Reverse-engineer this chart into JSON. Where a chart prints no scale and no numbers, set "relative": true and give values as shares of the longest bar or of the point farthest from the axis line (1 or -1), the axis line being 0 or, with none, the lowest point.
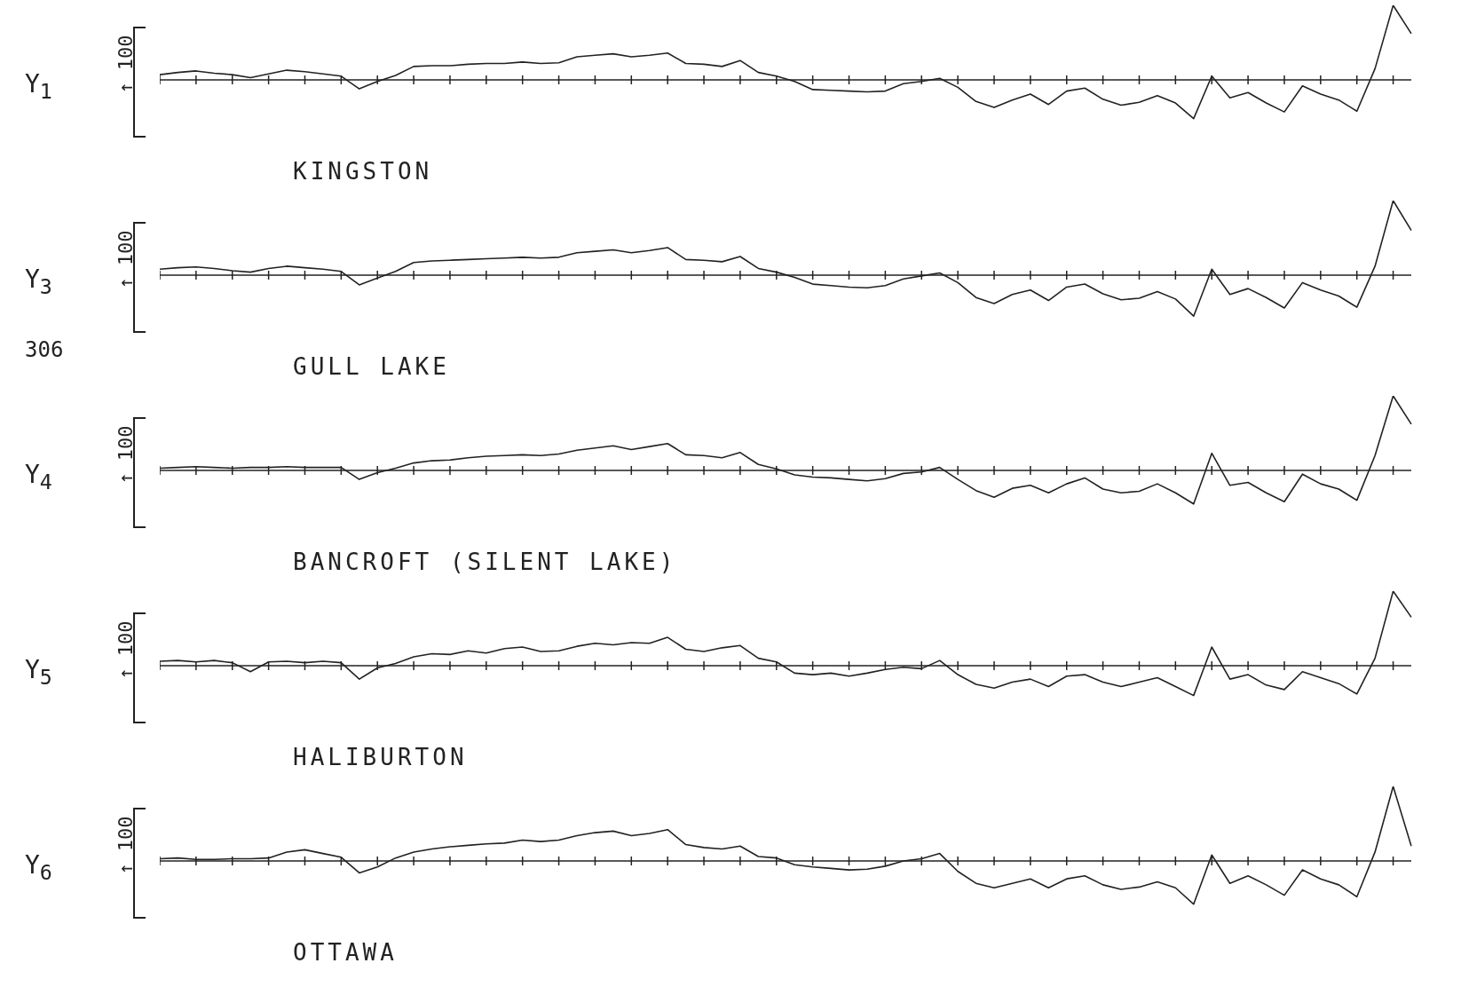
{
  "chart_data": [
    {
      "type": "line",
      "title": "KINGSTON",
      "ylabel": "Y$_{1}$",
      "relative": true,
      "color": "#222222",
      "annotations": [
        "↑ 100"
      ],
      "categories": [
        null,
        null,
        null,
        null,
        null,
        null,
        null,
        null,
        null,
        null,
        null,
        null,
        null,
        null,
        null,
        null,
        null,
        null,
        null,
        null,
        null,
        null,
        null,
        null,
        null,
        null,
        null,
        null,
        null,
        null,
        null,
        null,
        null,
        null,
        null,
        null,
        null,
        null,
        null,
        null,
        null,
        null,
        null,
        null,
        null,
        null,
        null,
        null,
        null,
        null,
        null,
        null,
        null,
        null,
        null,
        null,
        null,
        null,
        null,
        null,
        null,
        null,
        null,
        null,
        null,
        null,
        null,
        null,
        null,
        null
      ],
      "values": [
        0.07,
        0.1,
        0.12,
        0.09,
        0.07,
        0.03,
        0.08,
        0.13,
        0.11,
        0.08,
        0.05,
        -0.12,
        -0.02,
        0.06,
        0.18,
        0.19,
        0.19,
        0.21,
        0.22,
        0.22,
        0.24,
        0.22,
        0.23,
        0.31,
        0.33,
        0.35,
        0.31,
        0.33,
        0.36,
        0.22,
        0.21,
        0.18,
        0.26,
        0.1,
        0.05,
        -0.02,
        -0.13,
        -0.14,
        -0.15,
        -0.16,
        -0.15,
        -0.05,
        -0.02,
        0.02,
        -0.1,
        -0.29,
        -0.37,
        -0.27,
        -0.19,
        -0.33,
        -0.15,
        -0.11,
        -0.26,
        -0.34,
        -0.3,
        -0.21,
        -0.31,
        -0.52,
        0.05,
        -0.24,
        -0.17,
        -0.31,
        -0.43,
        -0.08,
        -0.19,
        -0.27,
        -0.42,
        0.15,
        1,
        0.62
      ]
    },
    {
      "type": "line",
      "title": "GULL LAKE",
      "ylabel": "Y$_{3}$",
      "relative": true,
      "color": "#222222",
      "annotations": [
        "↑ 100",
        "306"
      ],
      "categories": [
        null,
        null,
        null,
        null,
        null,
        null,
        null,
        null,
        null,
        null,
        null,
        null,
        null,
        null,
        null,
        null,
        null,
        null,
        null,
        null,
        null,
        null,
        null,
        null,
        null,
        null,
        null,
        null,
        null,
        null,
        null,
        null,
        null,
        null,
        null,
        null,
        null,
        null,
        null,
        null,
        null,
        null,
        null,
        null,
        null,
        null,
        null,
        null,
        null,
        null,
        null,
        null,
        null,
        null,
        null,
        null,
        null,
        null,
        null,
        null,
        null,
        null,
        null,
        null,
        null,
        null,
        null,
        null,
        null,
        null
      ],
      "values": [
        0.08,
        0.1,
        0.11,
        0.09,
        0.06,
        0.04,
        0.09,
        0.12,
        0.1,
        0.08,
        0.05,
        -0.13,
        -0.04,
        0.05,
        0.17,
        0.19,
        0.2,
        0.21,
        0.22,
        0.23,
        0.24,
        0.23,
        0.24,
        0.3,
        0.32,
        0.34,
        0.3,
        0.33,
        0.37,
        0.21,
        0.2,
        0.18,
        0.25,
        0.09,
        0.04,
        -0.03,
        -0.12,
        -0.14,
        -0.16,
        -0.17,
        -0.14,
        -0.05,
        -0.01,
        0.03,
        -0.1,
        -0.3,
        -0.38,
        -0.26,
        -0.2,
        -0.34,
        -0.16,
        -0.12,
        -0.25,
        -0.33,
        -0.31,
        -0.22,
        -0.32,
        -0.55,
        0.08,
        -0.26,
        -0.18,
        -0.3,
        -0.44,
        -0.1,
        -0.2,
        -0.28,
        -0.43,
        0.12,
        1,
        0.6
      ]
    },
    {
      "type": "line",
      "title": "BANCROFT (SILENT LAKE)",
      "ylabel": "Y$_{4}$",
      "relative": true,
      "color": "#222222",
      "annotations": [
        "↑ 100"
      ],
      "categories": [
        null,
        null,
        null,
        null,
        null,
        null,
        null,
        null,
        null,
        null,
        null,
        null,
        null,
        null,
        null,
        null,
        null,
        null,
        null,
        null,
        null,
        null,
        null,
        null,
        null,
        null,
        null,
        null,
        null,
        null,
        null,
        null,
        null,
        null,
        null,
        null,
        null,
        null,
        null,
        null,
        null,
        null,
        null,
        null,
        null,
        null,
        null,
        null,
        null,
        null,
        null,
        null,
        null,
        null,
        null,
        null,
        null,
        null,
        null,
        null,
        null,
        null,
        null,
        null,
        null,
        null,
        null,
        null,
        null,
        null
      ],
      "values": [
        0.03,
        0.04,
        0.05,
        0.04,
        0.03,
        0.04,
        0.04,
        0.05,
        0.04,
        0.04,
        0.04,
        -0.12,
        -0.03,
        0.03,
        0.1,
        0.13,
        0.14,
        0.17,
        0.19,
        0.2,
        0.21,
        0.2,
        0.22,
        0.27,
        0.3,
        0.33,
        0.28,
        0.32,
        0.36,
        0.21,
        0.2,
        0.17,
        0.24,
        0.08,
        0.02,
        -0.06,
        -0.09,
        -0.1,
        -0.12,
        -0.14,
        -0.11,
        -0.04,
        -0.02,
        0.04,
        -0.12,
        -0.27,
        -0.36,
        -0.24,
        -0.2,
        -0.3,
        -0.18,
        -0.1,
        -0.25,
        -0.3,
        -0.28,
        -0.18,
        -0.3,
        -0.45,
        0.23,
        -0.2,
        -0.16,
        -0.3,
        -0.42,
        -0.05,
        -0.18,
        -0.25,
        -0.4,
        0.2,
        1,
        0.62
      ]
    },
    {
      "type": "line",
      "title": "HALIBURTON",
      "ylabel": "Y$_{5}$",
      "relative": true,
      "color": "#222222",
      "annotations": [
        "↑ 100"
      ],
      "categories": [
        null,
        null,
        null,
        null,
        null,
        null,
        null,
        null,
        null,
        null,
        null,
        null,
        null,
        null,
        null,
        null,
        null,
        null,
        null,
        null,
        null,
        null,
        null,
        null,
        null,
        null,
        null,
        null,
        null,
        null,
        null,
        null,
        null,
        null,
        null,
        null,
        null,
        null,
        null,
        null,
        null,
        null,
        null,
        null,
        null,
        null,
        null,
        null,
        null,
        null,
        null,
        null,
        null,
        null,
        null,
        null,
        null,
        null,
        null,
        null,
        null,
        null,
        null,
        null,
        null,
        null,
        null,
        null,
        null,
        null
      ],
      "values": [
        0.06,
        0.07,
        0.05,
        0.07,
        0.04,
        -0.08,
        0.05,
        0.06,
        0.04,
        0.06,
        0.04,
        -0.18,
        -0.03,
        0.03,
        0.12,
        0.16,
        0.15,
        0.2,
        0.17,
        0.23,
        0.25,
        0.19,
        0.2,
        0.26,
        0.3,
        0.28,
        0.31,
        0.3,
        0.38,
        0.22,
        0.19,
        0.24,
        0.27,
        0.1,
        0.05,
        -0.1,
        -0.12,
        -0.1,
        -0.14,
        -0.1,
        -0.05,
        -0.02,
        -0.04,
        0.07,
        -0.12,
        -0.25,
        -0.3,
        -0.22,
        -0.18,
        -0.28,
        -0.14,
        -0.12,
        -0.22,
        -0.28,
        -0.22,
        -0.16,
        -0.28,
        -0.4,
        0.25,
        -0.18,
        -0.12,
        -0.26,
        -0.32,
        -0.08,
        -0.16,
        -0.24,
        -0.38,
        0.1,
        1,
        0.65
      ]
    },
    {
      "type": "line",
      "title": "OTTAWA",
      "ylabel": "Y$_{6}$",
      "relative": true,
      "color": "#222222",
      "annotations": [
        "↑ 100"
      ],
      "categories": [
        null,
        null,
        null,
        null,
        null,
        null,
        null,
        null,
        null,
        null,
        null,
        null,
        null,
        null,
        null,
        null,
        null,
        null,
        null,
        null,
        null,
        null,
        null,
        null,
        null,
        null,
        null,
        null,
        null,
        null,
        null,
        null,
        null,
        null,
        null,
        null,
        null,
        null,
        null,
        null,
        null,
        null,
        null,
        null,
        null,
        null,
        null,
        null,
        null,
        null,
        null,
        null,
        null,
        null,
        null,
        null,
        null,
        null,
        null,
        null,
        null,
        null,
        null,
        null,
        null,
        null,
        null,
        null,
        null,
        null
      ],
      "values": [
        0.03,
        0.04,
        0.02,
        0.02,
        0.03,
        0.03,
        0.04,
        0.12,
        0.15,
        0.1,
        0.05,
        -0.16,
        -0.08,
        0.04,
        0.12,
        0.16,
        0.19,
        0.21,
        0.23,
        0.24,
        0.28,
        0.26,
        0.28,
        0.34,
        0.38,
        0.4,
        0.34,
        0.37,
        0.42,
        0.22,
        0.18,
        0.16,
        0.2,
        0.06,
        0.04,
        -0.05,
        -0.08,
        -0.1,
        -0.12,
        -0.11,
        -0.07,
        0.0,
        0.03,
        0.1,
        -0.14,
        -0.3,
        -0.36,
        -0.3,
        -0.24,
        -0.36,
        -0.24,
        -0.2,
        -0.32,
        -0.38,
        -0.35,
        -0.28,
        -0.36,
        -0.58,
        0.08,
        -0.3,
        -0.2,
        -0.32,
        -0.46,
        -0.12,
        -0.24,
        -0.32,
        -0.48,
        0.12,
        1,
        0.2
      ]
    }
  ]
}
